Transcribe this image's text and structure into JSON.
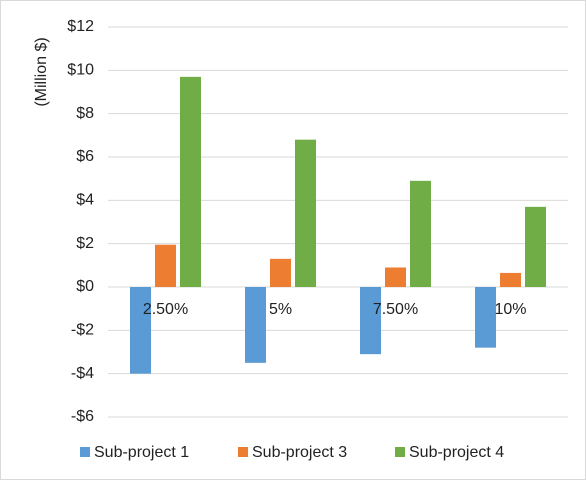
{
  "chart_data": {
    "type": "bar",
    "y_label": "(Million $)",
    "categories": [
      "2.50%",
      "5%",
      "7.50%",
      "10%"
    ],
    "series": [
      {
        "name": "Sub-project 1",
        "color": "#5b9bd5",
        "values": [
          -4.0,
          -3.5,
          -3.1,
          -2.8
        ]
      },
      {
        "name": "Sub-project 3",
        "color": "#ed7d31",
        "values": [
          1.95,
          1.3,
          0.9,
          0.65
        ]
      },
      {
        "name": "Sub-project 4",
        "color": "#70ad47",
        "values": [
          9.7,
          6.8,
          4.9,
          3.7
        ]
      }
    ],
    "ylim": [
      -6,
      12
    ],
    "yticks": [
      {
        "value": -6,
        "label": "-$6"
      },
      {
        "value": -4,
        "label": "-$4"
      },
      {
        "value": -2,
        "label": "-$2"
      },
      {
        "value": 0,
        "label": "$0"
      },
      {
        "value": 2,
        "label": "$2"
      },
      {
        "value": 4,
        "label": "$4"
      },
      {
        "value": 6,
        "label": "$6"
      },
      {
        "value": 8,
        "label": "$8"
      },
      {
        "value": 10,
        "label": "$10"
      },
      {
        "value": 12,
        "label": "$12"
      }
    ],
    "grid": true,
    "legend": "bottom"
  }
}
